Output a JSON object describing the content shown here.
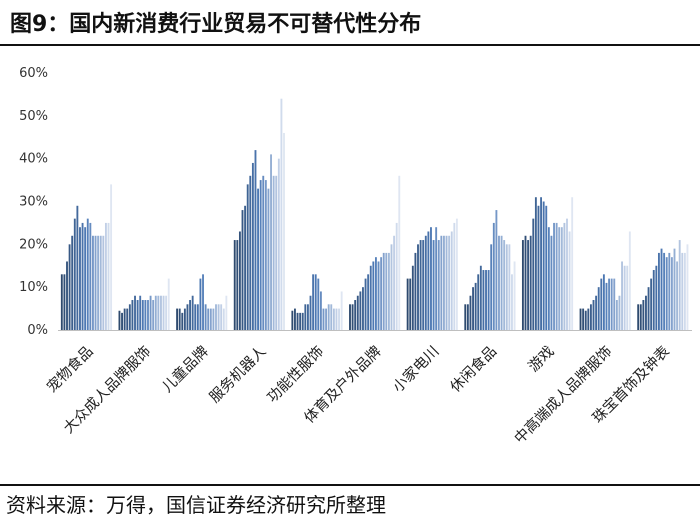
{
  "header": {
    "title": "图9：国内新消费行业贸易不可替代性分布"
  },
  "footer": {
    "source": "资料来源：万得，国信证券经济研究所整理"
  },
  "colors": {
    "dark": "#2e4a6e",
    "mid": "#4f7bb7",
    "light": "#dfe6f2",
    "axis": "#bfbfbf"
  },
  "chart_data": {
    "type": "bar",
    "title": "",
    "xlabel": "",
    "ylabel": "",
    "ylim": [
      0,
      60
    ],
    "yticks": [
      "0%",
      "10%",
      "20%",
      "30%",
      "40%",
      "50%",
      "60%"
    ],
    "legend": "none",
    "grid": false,
    "categories": [
      "宠物食品",
      "大众成人品牌服饰",
      "儿童品牌",
      "服务机器人",
      "功能性服饰",
      "体育及户外品牌",
      "小家电川",
      "休闲食品",
      "游戏",
      "中高端成人品牌服饰",
      "珠宝首饰及钟表"
    ],
    "values": [
      [
        13,
        13,
        16,
        20,
        22,
        26,
        29,
        24,
        25,
        24,
        26,
        25,
        22,
        22,
        22,
        22,
        22,
        25,
        25,
        34
      ],
      [
        4.5,
        4,
        5,
        5,
        6,
        7,
        8,
        7,
        8,
        7,
        7,
        7,
        8,
        7,
        8,
        8,
        8,
        8,
        8,
        12
      ],
      [
        5,
        5,
        4,
        5,
        6,
        7,
        8,
        6,
        6,
        12,
        13,
        6,
        5,
        5,
        5,
        6,
        6,
        6,
        5,
        8
      ],
      [
        21,
        21,
        23,
        28,
        29,
        34,
        36,
        39,
        42,
        33,
        35,
        36,
        35,
        33,
        41,
        36,
        36,
        40,
        54,
        46
      ],
      [
        4.5,
        5,
        4,
        4,
        4,
        6,
        6,
        8,
        13,
        13,
        12,
        9,
        5,
        5,
        6,
        6,
        5,
        5,
        5,
        9
      ],
      [
        6,
        6,
        7,
        8,
        9,
        10,
        12,
        13,
        15,
        16,
        17,
        16,
        17,
        18,
        18,
        18,
        20,
        22,
        25,
        36
      ],
      [
        12,
        12,
        15,
        18,
        20,
        21,
        21,
        22,
        23,
        24,
        21,
        24,
        21,
        22,
        22,
        22,
        22,
        23,
        25,
        26
      ],
      [
        6,
        6,
        8,
        10,
        11,
        13,
        15,
        14,
        14,
        14,
        20,
        25,
        28,
        22,
        22,
        21,
        20,
        20,
        13,
        16
      ],
      [
        21,
        22,
        21,
        22,
        26,
        31,
        29,
        31,
        30,
        29,
        24,
        22,
        25,
        25,
        24,
        24,
        25,
        26,
        23,
        31
      ],
      [
        5,
        5,
        4.5,
        5,
        6,
        7,
        8,
        10,
        12,
        13,
        11,
        12,
        12,
        12,
        7,
        8,
        16,
        15,
        15,
        23
      ],
      [
        6,
        6,
        7,
        8,
        10,
        12,
        14,
        15,
        18,
        19,
        18,
        17,
        18,
        17,
        19,
        16,
        21,
        18,
        18,
        20
      ]
    ]
  }
}
